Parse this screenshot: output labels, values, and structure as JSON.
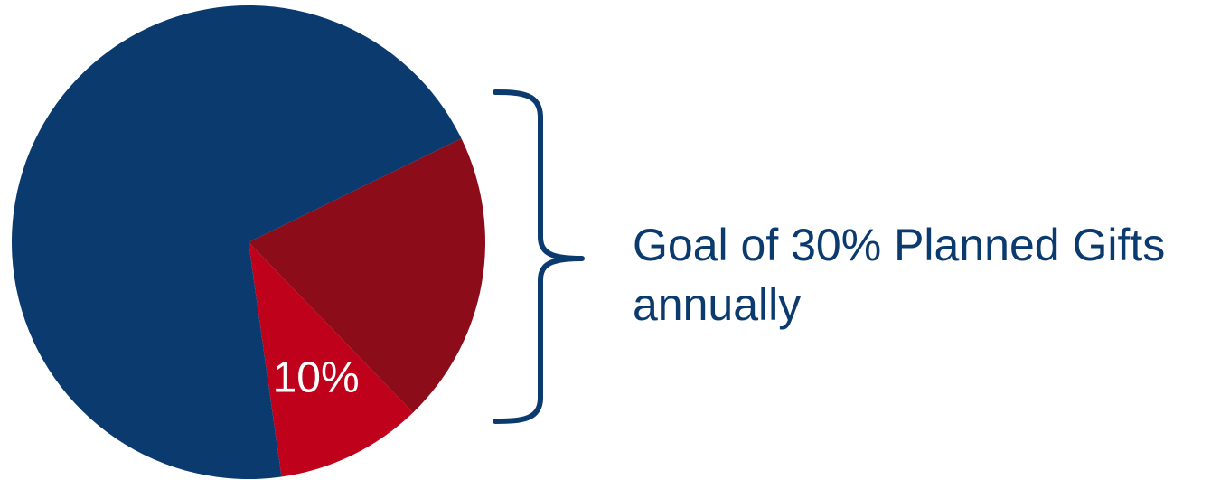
{
  "chart_data": {
    "type": "pie",
    "categories": [
      "",
      "",
      ""
    ],
    "values": [
      70,
      20,
      10
    ],
    "data_labels": [
      "",
      "",
      "10%"
    ],
    "colors": [
      "#0a3a6e",
      "#8c0d19",
      "#c0011c"
    ],
    "annotation": {
      "line1": "Goal of 30% Planned Gifts",
      "line2": "annually"
    },
    "bracket_color": "#0a3a6e"
  }
}
